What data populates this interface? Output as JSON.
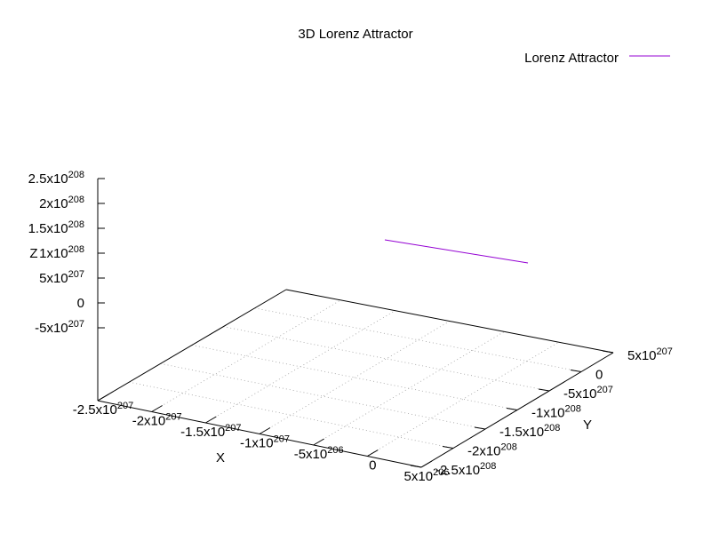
{
  "chart_data": {
    "type": "line",
    "title": "3D Lorenz Attractor",
    "xlabel": "X",
    "ylabel": "Y",
    "zlabel": "Z",
    "legend_placement": "top-right",
    "grid": true,
    "series": [
      {
        "name": "Lorenz Attractor",
        "color": "#9400d3",
        "start_label": "",
        "end_label": ""
      }
    ],
    "x_ticks": [
      {
        "mant": "-2.5x10",
        "exp": "207"
      },
      {
        "mant": "-2x10",
        "exp": "207"
      },
      {
        "mant": "-1.5x10",
        "exp": "207"
      },
      {
        "mant": "-1x10",
        "exp": "207"
      },
      {
        "mant": "-5x10",
        "exp": "206"
      },
      {
        "mant": "0",
        "exp": ""
      },
      {
        "mant": "5x10",
        "exp": "206"
      }
    ],
    "y_ticks": [
      {
        "mant": "-2.5x10",
        "exp": "208"
      },
      {
        "mant": "-2x10",
        "exp": "208"
      },
      {
        "mant": "-1.5x10",
        "exp": "208"
      },
      {
        "mant": "-1x10",
        "exp": "208"
      },
      {
        "mant": "-5x10",
        "exp": "207"
      },
      {
        "mant": "0",
        "exp": ""
      },
      {
        "mant": "5x10",
        "exp": "207"
      }
    ],
    "z_ticks": [
      {
        "mant": "2.5x10",
        "exp": "208"
      },
      {
        "mant": "2x10",
        "exp": "208"
      },
      {
        "mant": "1.5x10",
        "exp": "208"
      },
      {
        "mant": "1x10",
        "exp": "208"
      },
      {
        "mant": "5x10",
        "exp": "207"
      },
      {
        "mant": "0",
        "exp": ""
      },
      {
        "mant": "-5x10",
        "exp": "207"
      }
    ]
  }
}
